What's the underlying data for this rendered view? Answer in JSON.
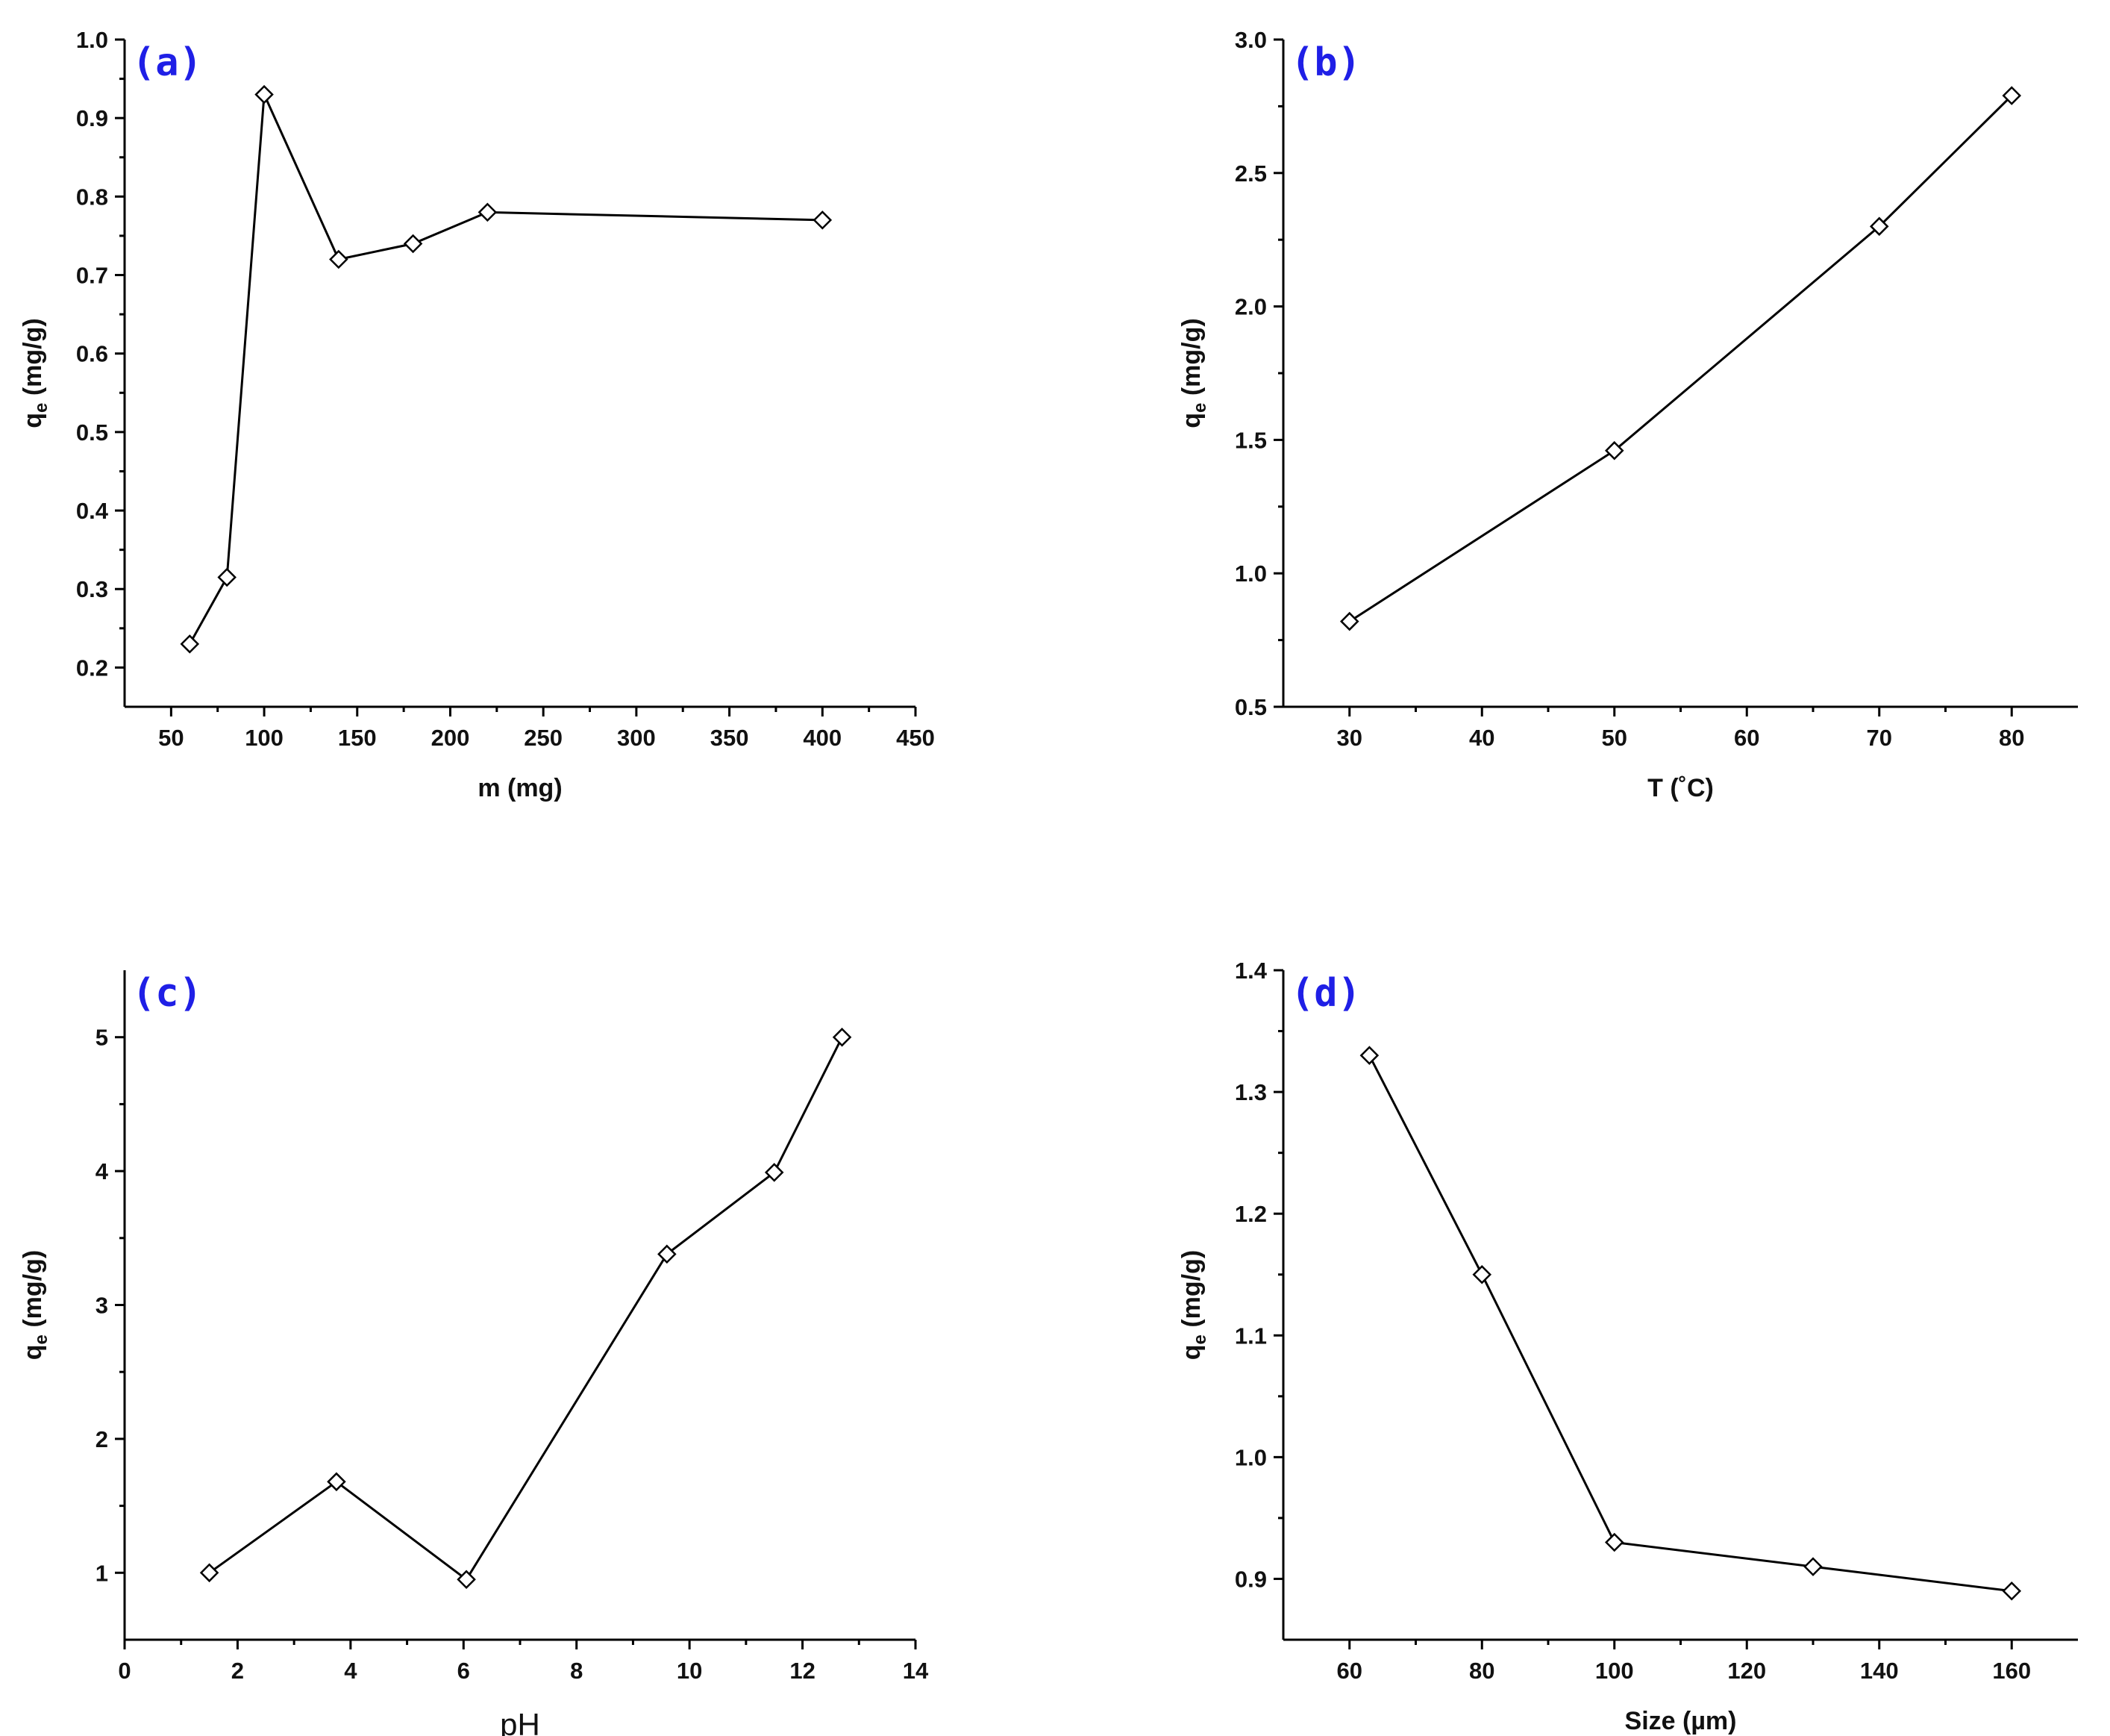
{
  "chart_data": [
    {
      "id": "a",
      "type": "line",
      "panel_label": "(a)",
      "xlabel": "m (mg)",
      "ylabel_main": "q",
      "ylabel_sub": "e",
      "ylabel_rest": " (mg/g)",
      "xlim": [
        25,
        450
      ],
      "ylim": [
        0.15,
        1.0
      ],
      "xticks": [
        50,
        100,
        150,
        200,
        250,
        300,
        350,
        400,
        450
      ],
      "yticks": [
        0.2,
        0.3,
        0.4,
        0.5,
        0.6,
        0.7,
        0.8,
        0.9,
        1.0
      ],
      "ytick_decimals": 1,
      "x": [
        60,
        80,
        100,
        140,
        180,
        220,
        400
      ],
      "y": [
        0.23,
        0.315,
        0.93,
        0.72,
        0.74,
        0.78,
        0.77
      ],
      "marker": "hollow-diamond"
    },
    {
      "id": "b",
      "type": "line",
      "panel_label": "(b)",
      "xlabel": "T (˚C)",
      "ylabel_main": "q",
      "ylabel_sub": "e",
      "ylabel_rest": " (mg/g)",
      "xlim": [
        25,
        85
      ],
      "ylim": [
        0.5,
        3.0
      ],
      "xticks": [
        30,
        40,
        50,
        60,
        70,
        80
      ],
      "yticks": [
        0.5,
        1.0,
        1.5,
        2.0,
        2.5,
        3.0
      ],
      "ytick_decimals": 1,
      "x": [
        30,
        50,
        70,
        80
      ],
      "y": [
        0.82,
        1.46,
        2.3,
        2.79
      ],
      "marker": "hollow-diamond"
    },
    {
      "id": "c",
      "type": "line",
      "panel_label": "(c)",
      "xlabel": "pH",
      "ylabel_main": "q",
      "ylabel_sub": "e",
      "ylabel_rest": " (mg/g)",
      "xlim": [
        0,
        14
      ],
      "ylim": [
        0.5,
        5.5
      ],
      "xticks": [
        0,
        2,
        4,
        6,
        8,
        10,
        12,
        14
      ],
      "yticks": [
        1,
        2,
        3,
        4,
        5
      ],
      "ytick_decimals": 0,
      "x": [
        1.5,
        3.75,
        6.05,
        9.6,
        11.5,
        12.7
      ],
      "y": [
        1.0,
        1.68,
        0.95,
        3.38,
        3.99,
        5.0
      ],
      "marker": "hollow-diamond"
    },
    {
      "id": "d",
      "type": "line",
      "panel_label": "(d)",
      "xlabel": "Size (µm)",
      "ylabel_main": "q",
      "ylabel_sub": "e",
      "ylabel_rest": " (mg/g)",
      "xlim": [
        50,
        170
      ],
      "ylim": [
        0.85,
        1.4
      ],
      "xticks": [
        60,
        80,
        100,
        120,
        140,
        160
      ],
      "yticks": [
        0.9,
        1.0,
        1.1,
        1.2,
        1.3,
        1.4
      ],
      "ytick_decimals": 1,
      "x": [
        63,
        80,
        100,
        130,
        160
      ],
      "y": [
        1.33,
        1.15,
        0.93,
        0.91,
        0.89
      ],
      "marker": "hollow-diamond"
    }
  ]
}
